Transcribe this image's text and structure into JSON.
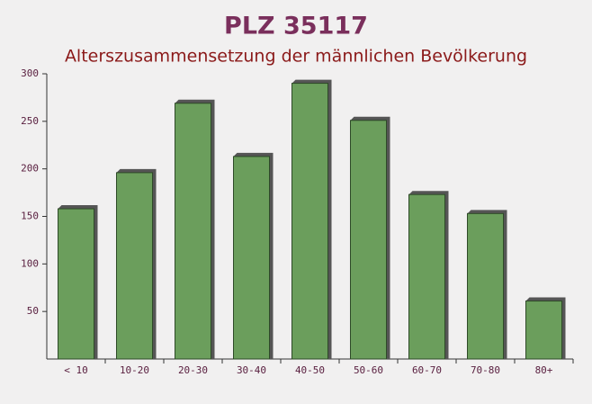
{
  "chart_data": {
    "type": "bar",
    "title": "PLZ 35117",
    "subtitle": "Alterszusammensetzung der männlichen Bevölkerung",
    "categories": [
      "< 10",
      "10-20",
      "20-30",
      "30-40",
      "40-50",
      "50-60",
      "60-70",
      "70-80",
      "80+"
    ],
    "values": [
      158,
      196,
      269,
      213,
      290,
      251,
      173,
      153,
      61
    ],
    "color": "#6b9e5c",
    "ylim": [
      0,
      300
    ],
    "yticks": [
      50,
      100,
      150,
      200,
      250,
      300
    ]
  }
}
